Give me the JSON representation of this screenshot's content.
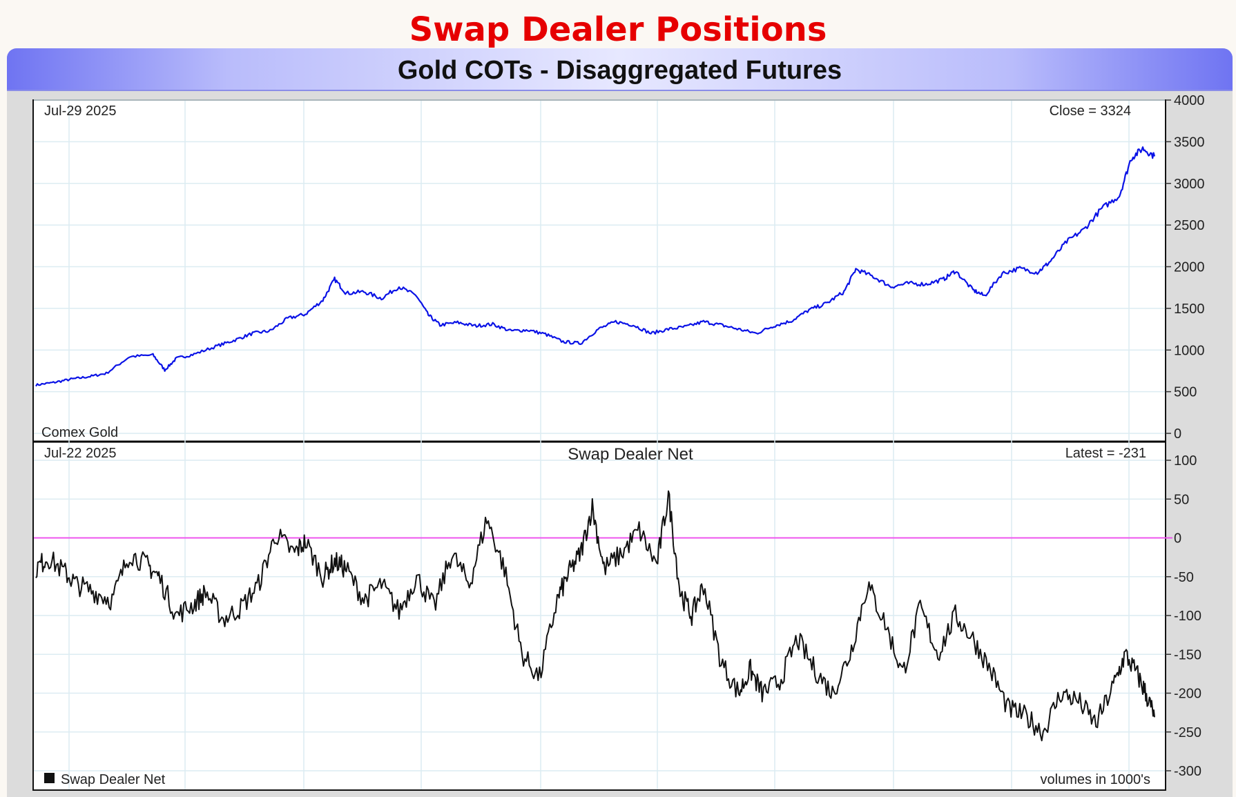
{
  "page_title": "Swap Dealer Positions",
  "frame_title": "Gold COTs - Disaggregated Futures",
  "colors": {
    "page_title": "#e60000",
    "price_line": "#0a12e6",
    "net_line": "#111111",
    "zero_line": "#ee55ee",
    "grid": "#dcecf2"
  },
  "chart_data": [
    {
      "type": "line",
      "title": "",
      "date_label": "Jul-29  2025",
      "latest_label": "Close = 3324",
      "bottom_left_label": "Comex Gold",
      "x_range": [
        2006.6,
        2025.7
      ],
      "ylim": [
        0,
        4000
      ],
      "yticks": [
        0,
        500,
        1000,
        1500,
        2000,
        2500,
        3000,
        3500,
        4000
      ],
      "ytick_labels": [
        "0",
        "500",
        "1000",
        "1500",
        "2000",
        "2500",
        "3000",
        "3500",
        "4000"
      ],
      "grid": true,
      "series": [
        {
          "name": "",
          "x": [
            2006.6,
            2006.9,
            2007.2,
            2007.5,
            2007.8,
            2008.2,
            2008.6,
            2008.8,
            2009.0,
            2009.3,
            2009.7,
            2010.0,
            2010.3,
            2010.6,
            2010.9,
            2011.2,
            2011.5,
            2011.7,
            2011.9,
            2012.2,
            2012.5,
            2012.8,
            2013.1,
            2013.3,
            2013.5,
            2013.8,
            2014.1,
            2014.4,
            2014.7,
            2015.0,
            2015.3,
            2015.6,
            2015.9,
            2016.2,
            2016.5,
            2016.8,
            2017.1,
            2017.4,
            2017.7,
            2018.0,
            2018.3,
            2018.6,
            2018.9,
            2019.2,
            2019.5,
            2019.8,
            2020.1,
            2020.4,
            2020.6,
            2020.9,
            2021.2,
            2021.5,
            2021.8,
            2022.1,
            2022.3,
            2022.6,
            2022.8,
            2023.1,
            2023.4,
            2023.7,
            2023.9,
            2024.2,
            2024.5,
            2024.8,
            2025.1,
            2025.3,
            2025.5,
            2025.7
          ],
          "y": [
            580,
            610,
            650,
            680,
            720,
            920,
            940,
            760,
            900,
            950,
            1050,
            1120,
            1200,
            1230,
            1380,
            1430,
            1600,
            1850,
            1680,
            1700,
            1620,
            1760,
            1650,
            1420,
            1300,
            1330,
            1290,
            1310,
            1230,
            1240,
            1190,
            1100,
            1080,
            1250,
            1340,
            1300,
            1200,
            1250,
            1280,
            1340,
            1300,
            1250,
            1200,
            1290,
            1350,
            1480,
            1560,
            1700,
            1970,
            1880,
            1760,
            1800,
            1790,
            1850,
            1950,
            1720,
            1650,
            1920,
            1980,
            1930,
            2050,
            2300,
            2450,
            2700,
            2850,
            3300,
            3420,
            3324
          ]
        }
      ]
    },
    {
      "type": "line",
      "title": "Swap Dealer Net",
      "date_label": "Jul-22  2025",
      "latest_label": "Latest = -231",
      "legend": "Swap Dealer Net",
      "legend_position": "bottom-left",
      "footer_label": "volumes in 1000's",
      "x_range": [
        2006.6,
        2025.7
      ],
      "ylim": [
        -300,
        100
      ],
      "yticks": [
        -300,
        -250,
        -200,
        -150,
        -100,
        -50,
        0,
        50,
        100
      ],
      "ytick_labels": [
        "-300",
        "-250",
        "-200",
        "-150",
        "-100",
        "-50",
        "0",
        "50",
        "100"
      ],
      "zero_line": 0,
      "grid": true,
      "series": [
        {
          "name": "Swap Dealer Net",
          "x": [
            2006.6,
            2006.8,
            2007.1,
            2007.3,
            2007.6,
            2007.9,
            2008.2,
            2008.5,
            2008.7,
            2009.0,
            2009.3,
            2009.5,
            2009.8,
            2010.1,
            2010.4,
            2010.7,
            2011.0,
            2011.2,
            2011.5,
            2011.7,
            2011.9,
            2012.2,
            2012.5,
            2012.8,
            2013.1,
            2013.4,
            2013.7,
            2014.0,
            2014.3,
            2014.6,
            2014.9,
            2015.2,
            2015.5,
            2015.7,
            2015.9,
            2016.1,
            2016.3,
            2016.6,
            2016.9,
            2017.2,
            2017.4,
            2017.6,
            2017.8,
            2018.0,
            2018.3,
            2018.6,
            2018.8,
            2019.0,
            2019.3,
            2019.6,
            2019.9,
            2020.2,
            2020.5,
            2020.8,
            2021.1,
            2021.4,
            2021.7,
            2022.0,
            2022.3,
            2022.6,
            2022.9,
            2023.2,
            2023.5,
            2023.8,
            2024.1,
            2024.4,
            2024.7,
            2025.0,
            2025.2,
            2025.4,
            2025.55,
            2025.7
          ],
          "y": [
            -40,
            -25,
            -45,
            -60,
            -70,
            -80,
            -20,
            -35,
            -50,
            -100,
            -85,
            -70,
            -105,
            -90,
            -60,
            5,
            -20,
            -5,
            -50,
            -30,
            -40,
            -80,
            -60,
            -95,
            -50,
            -90,
            -20,
            -60,
            25,
            -40,
            -150,
            -180,
            -80,
            -45,
            -20,
            40,
            -40,
            -20,
            10,
            -35,
            55,
            -70,
            -100,
            -60,
            -160,
            -200,
            -170,
            -200,
            -185,
            -130,
            -170,
            -200,
            -150,
            -60,
            -110,
            -175,
            -90,
            -150,
            -100,
            -130,
            -170,
            -220,
            -230,
            -250,
            -200,
            -210,
            -240,
            -190,
            -150,
            -175,
            -200,
            -231
          ]
        }
      ]
    }
  ]
}
